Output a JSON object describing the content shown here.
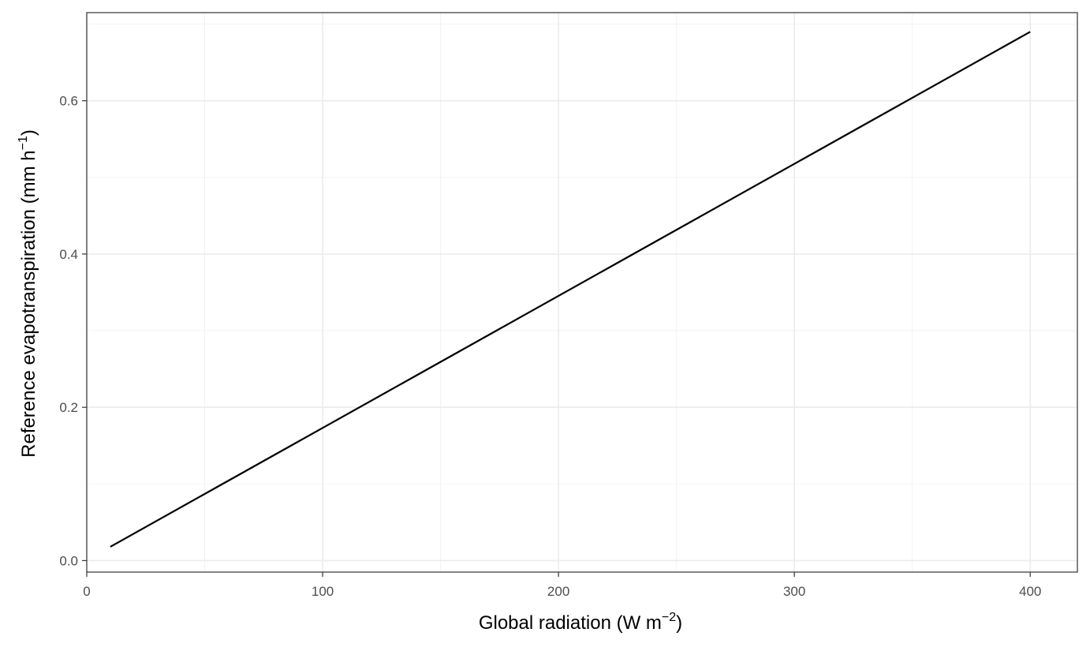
{
  "chart_data": {
    "type": "line",
    "xlabel": {
      "main": "Global radiation (W m",
      "sup": "−2",
      "close": ")"
    },
    "ylabel": {
      "main": "Reference evapotranspiration (mm h",
      "sup": "−1",
      "close": ")"
    },
    "xlim": [
      0,
      420
    ],
    "ylim": [
      -0.015,
      0.715
    ],
    "x_ticks": [
      0,
      100,
      200,
      300,
      400
    ],
    "x_tick_labels": [
      "0",
      "100",
      "200",
      "300",
      "400"
    ],
    "y_ticks": [
      0.0,
      0.2,
      0.4,
      0.6
    ],
    "y_tick_labels": [
      "0.0",
      "0.2",
      "0.4",
      "0.6"
    ],
    "x_minor": [
      50,
      150,
      250,
      350
    ],
    "y_minor": [
      0.1,
      0.3,
      0.5,
      0.7
    ],
    "grid": true,
    "legend": "none",
    "series": [
      {
        "color": "#000000",
        "x": [
          10,
          400
        ],
        "y": [
          0.018,
          0.69
        ]
      }
    ]
  }
}
